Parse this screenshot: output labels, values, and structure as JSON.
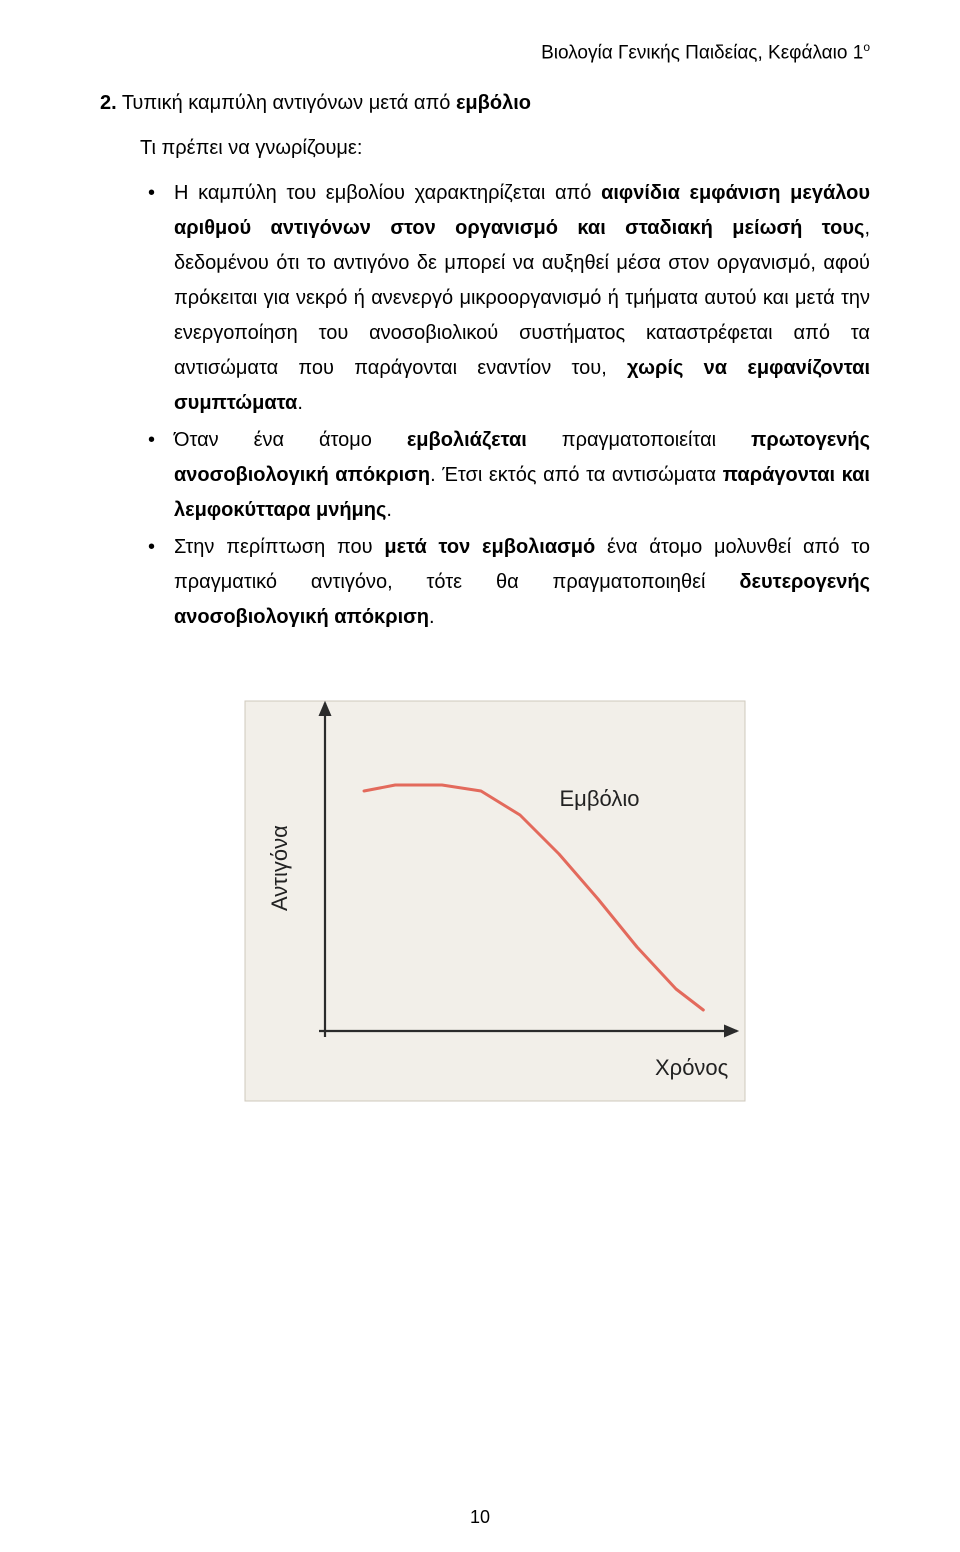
{
  "header": {
    "text_left": "Βιολογία Γενικής Παιδείας, Κεφάλαιο 1",
    "sup": "ο"
  },
  "section": {
    "number": "2.",
    "title_plain_1": "Τυπική καμπύλη αντιγόνων μετά από ",
    "title_bold": "εμβόλιο",
    "intro": "Τι πρέπει να γνωρίζουμε:"
  },
  "bullets": {
    "b1": {
      "t1": "Η καμπύλη του εμβολίου χαρακτηρίζεται από ",
      "b1": "αιφνίδια εμφάνιση μεγάλου αριθμού αντιγόνων στον οργανισμό και σταδιακή μείωσή τους",
      "t2": ", δεδομένου ότι το αντιγόνο δε μπορεί να αυξηθεί μέσα στον οργανισμό, αφού πρόκειται για νεκρό ή ανενεργό μικροοργανισμό ή τμήματα αυτού και μετά την ενεργοποίηση του ανοσοβιολικού συστήματος καταστρέφεται από τα αντισώματα που παράγονται εναντίον του, ",
      "b2": "χωρίς να εμφανίζονται συμπτώματα",
      "t3": "."
    },
    "b2": {
      "t1": "Όταν ένα άτομο ",
      "b1": "εμβολιάζεται",
      "t2": " πραγματοποιείται ",
      "b2": "πρωτογενής ανοσοβιολογική απόκριση",
      "t3": ". Έτσι εκτός από τα αντισώματα ",
      "b3": "παράγονται και λεμφοκύτταρα μνήμης",
      "t4": "."
    },
    "b3": {
      "t1": "Στην περίπτωση που ",
      "b1": "μετά τον εμβολιασμό",
      "t2": " ένα άτομο μολυνθεί από το πραγματικό αντιγόνο, τότε θα πραγματοποιηθεί ",
      "b2": "δευτερογενής ανοσοβιολογική απόκριση",
      "t3": "."
    }
  },
  "chart": {
    "type": "line",
    "background_color": "#f2efe9",
    "frame_color": "#cfc8bc",
    "axis_color": "#2b2b2b",
    "curve_color": "#e36a5c",
    "curve_width": 3,
    "axis_width": 2.2,
    "label_color": "#222222",
    "label_fontsize": 22,
    "y_label": "Αντιγόνα",
    "x_label": "Χρόνος",
    "curve_label": "Εμβόλιο",
    "points": [
      {
        "x": 0.1,
        "y": 0.8
      },
      {
        "x": 0.18,
        "y": 0.82
      },
      {
        "x": 0.3,
        "y": 0.82
      },
      {
        "x": 0.4,
        "y": 0.8
      },
      {
        "x": 0.5,
        "y": 0.72
      },
      {
        "x": 0.6,
        "y": 0.59
      },
      {
        "x": 0.7,
        "y": 0.44
      },
      {
        "x": 0.8,
        "y": 0.28
      },
      {
        "x": 0.9,
        "y": 0.14
      },
      {
        "x": 0.97,
        "y": 0.07
      }
    ],
    "xlim": [
      0,
      1
    ],
    "ylim": [
      0,
      1
    ]
  },
  "page_number": "10"
}
